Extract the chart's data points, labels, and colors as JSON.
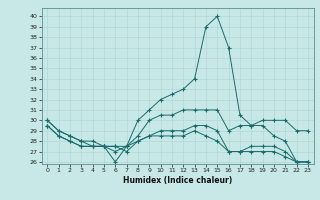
{
  "title": "",
  "xlabel": "Humidex (Indice chaleur)",
  "bg_color": "#c8e8e8",
  "line_color": "#1a6b6b",
  "grid_color": "#b0d8d8",
  "xlim": [
    -0.5,
    23.5
  ],
  "ylim": [
    25.8,
    40.8
  ],
  "yticks": [
    26,
    27,
    28,
    29,
    30,
    31,
    32,
    33,
    34,
    35,
    36,
    37,
    38,
    39,
    40
  ],
  "xticks": [
    0,
    1,
    2,
    3,
    4,
    5,
    6,
    7,
    8,
    9,
    10,
    11,
    12,
    13,
    14,
    15,
    16,
    17,
    18,
    19,
    20,
    21,
    22,
    23
  ],
  "line1": [
    30,
    29,
    28.5,
    28,
    27.5,
    27.5,
    26,
    27.5,
    30,
    31,
    32,
    32.5,
    33,
    34,
    39,
    40,
    37,
    30.5,
    29.5,
    30,
    30,
    30,
    29,
    29
  ],
  "line2": [
    30,
    29,
    28.5,
    28,
    28,
    27.5,
    27,
    27.5,
    28.5,
    30,
    30.5,
    30.5,
    31,
    31,
    31,
    31,
    29,
    29.5,
    29.5,
    29.5,
    28.5,
    28,
    26,
    26
  ],
  "line3": [
    29.5,
    28.5,
    28,
    27.5,
    27.5,
    27.5,
    27.5,
    27.5,
    28,
    28.5,
    29,
    29,
    29,
    29.5,
    29.5,
    29,
    27,
    27,
    27.5,
    27.5,
    27.5,
    27,
    26,
    26
  ],
  "line4": [
    29.5,
    28.5,
    28,
    27.5,
    27.5,
    27.5,
    27.5,
    27,
    28,
    28.5,
    28.5,
    28.5,
    28.5,
    29,
    28.5,
    28,
    27,
    27,
    27,
    27,
    27,
    26.5,
    26,
    26
  ]
}
